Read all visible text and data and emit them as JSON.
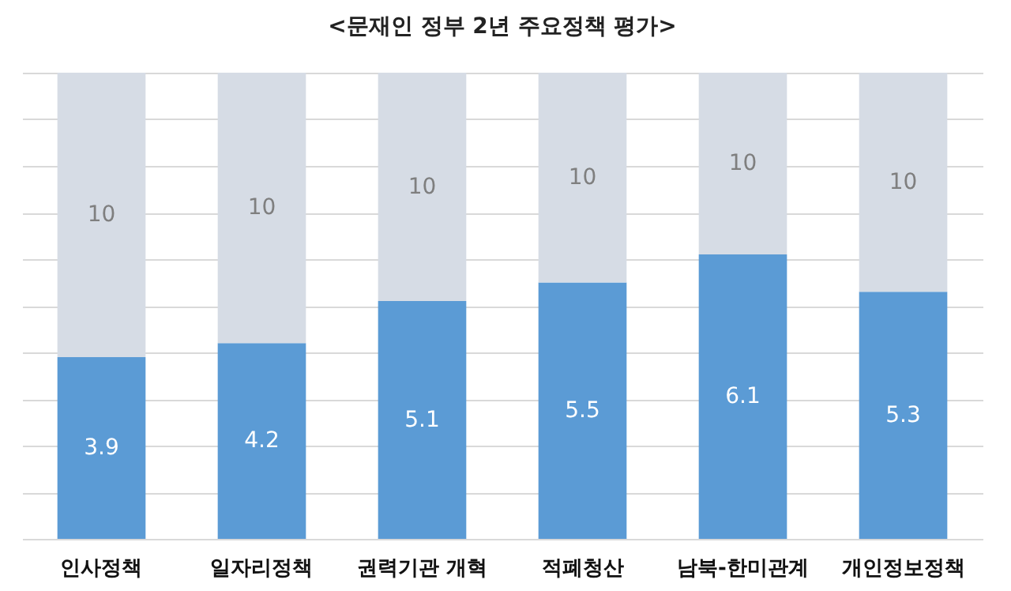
{
  "chart_data": {
    "type": "bar",
    "title": "<문재인 정부 2년 주요정책 평가>",
    "categories": [
      "인사정책",
      "일자리정책",
      "권력기관 개혁",
      "적폐청산",
      "남북-한미관계",
      "개인정보정책"
    ],
    "stacked": true,
    "series": [
      {
        "color": "#5b9bd5",
        "values": [
          3.9,
          4.2,
          5.1,
          5.5,
          6.1,
          5.3
        ],
        "value_labels": [
          "3.9",
          "4.2",
          "5.1",
          "5.5",
          "6.1",
          "5.3"
        ]
      },
      {
        "color": "#d6dce5",
        "values": [
          6.1,
          5.8,
          4.9,
          4.5,
          3.9,
          4.7
        ]
      }
    ],
    "totals": [
      "10",
      "10",
      "10",
      "10",
      "10",
      "10"
    ],
    "ylim": [
      0,
      10
    ],
    "grid": "y",
    "tick_labels": "x"
  }
}
